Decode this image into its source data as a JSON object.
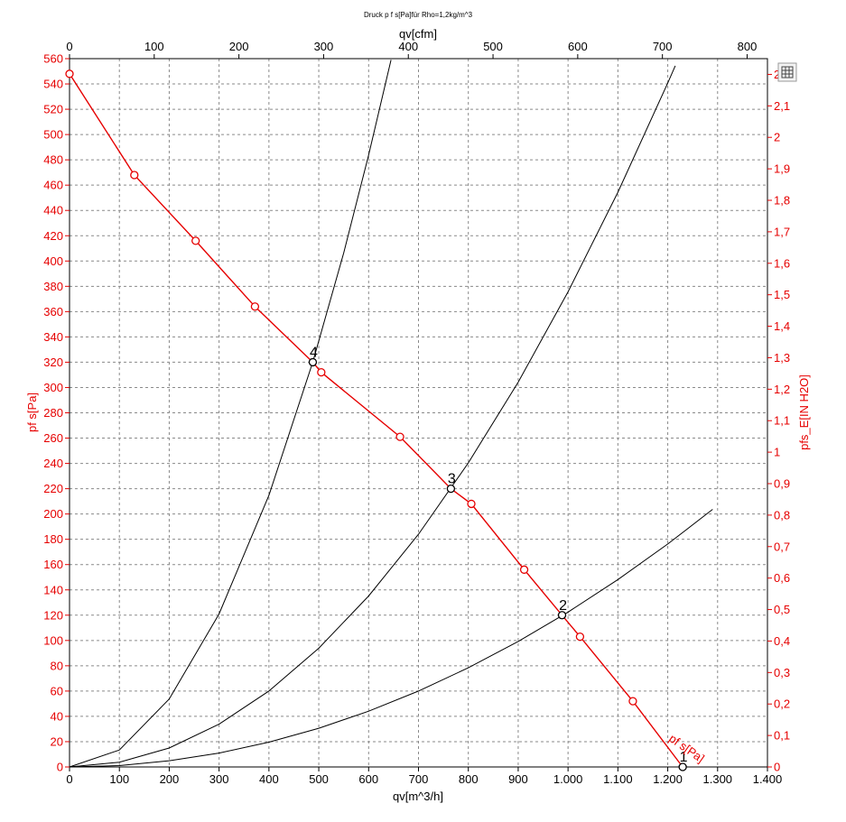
{
  "chart_data": {
    "type": "line",
    "title": "Druck p f s[Pa]für Rho=1,2kg/m^3",
    "xlabel": "qv[m^3/h]",
    "x2label": "qv[cfm]",
    "ylabel": "pf s[Pa]",
    "y2label": "pfs_E[IN H2O]",
    "xlim": [
      0,
      1400
    ],
    "ylim": [
      0,
      560
    ],
    "x2lim": [
      0,
      824
    ],
    "y2lim": [
      0,
      2.25
    ],
    "grid": true,
    "x_ticks": [
      {
        "value": 0,
        "label": "0"
      },
      {
        "value": 100,
        "label": "100"
      },
      {
        "value": 200,
        "label": "200"
      },
      {
        "value": 300,
        "label": "300"
      },
      {
        "value": 400,
        "label": "400"
      },
      {
        "value": 500,
        "label": "500"
      },
      {
        "value": 600,
        "label": "600"
      },
      {
        "value": 700,
        "label": "700"
      },
      {
        "value": 800,
        "label": "800"
      },
      {
        "value": 900,
        "label": "900"
      },
      {
        "value": 1000,
        "label": "1.000"
      },
      {
        "value": 1100,
        "label": "1.100"
      },
      {
        "value": 1200,
        "label": "1.200"
      },
      {
        "value": 1300,
        "label": "1.300"
      },
      {
        "value": 1400,
        "label": "1.400"
      }
    ],
    "x2_ticks": [
      {
        "value": 0,
        "label": "0"
      },
      {
        "value": 100,
        "label": "100"
      },
      {
        "value": 200,
        "label": "200"
      },
      {
        "value": 300,
        "label": "300"
      },
      {
        "value": 400,
        "label": "400"
      },
      {
        "value": 500,
        "label": "500"
      },
      {
        "value": 600,
        "label": "600"
      },
      {
        "value": 700,
        "label": "700"
      },
      {
        "value": 800,
        "label": "800"
      }
    ],
    "y_ticks": [
      {
        "value": 0,
        "label": "0"
      },
      {
        "value": 20,
        "label": "20"
      },
      {
        "value": 40,
        "label": "40"
      },
      {
        "value": 60,
        "label": "60"
      },
      {
        "value": 80,
        "label": "80"
      },
      {
        "value": 100,
        "label": "100"
      },
      {
        "value": 120,
        "label": "120"
      },
      {
        "value": 140,
        "label": "140"
      },
      {
        "value": 160,
        "label": "160"
      },
      {
        "value": 180,
        "label": "180"
      },
      {
        "value": 200,
        "label": "200"
      },
      {
        "value": 220,
        "label": "220"
      },
      {
        "value": 240,
        "label": "240"
      },
      {
        "value": 260,
        "label": "260"
      },
      {
        "value": 280,
        "label": "280"
      },
      {
        "value": 300,
        "label": "300"
      },
      {
        "value": 320,
        "label": "320"
      },
      {
        "value": 340,
        "label": "340"
      },
      {
        "value": 360,
        "label": "360"
      },
      {
        "value": 380,
        "label": "380"
      },
      {
        "value": 400,
        "label": "400"
      },
      {
        "value": 420,
        "label": "420"
      },
      {
        "value": 440,
        "label": "440"
      },
      {
        "value": 460,
        "label": "460"
      },
      {
        "value": 480,
        "label": "480"
      },
      {
        "value": 500,
        "label": "500"
      },
      {
        "value": 520,
        "label": "520"
      },
      {
        "value": 540,
        "label": "540"
      },
      {
        "value": 560,
        "label": "560"
      }
    ],
    "y2_ticks": [
      {
        "value": 0,
        "label": "0"
      },
      {
        "value": 0.1,
        "label": "0,1"
      },
      {
        "value": 0.2,
        "label": "0,2"
      },
      {
        "value": 0.3,
        "label": "0,3"
      },
      {
        "value": 0.4,
        "label": "0,4"
      },
      {
        "value": 0.5,
        "label": "0,5"
      },
      {
        "value": 0.6,
        "label": "0,6"
      },
      {
        "value": 0.7,
        "label": "0,7"
      },
      {
        "value": 0.8,
        "label": "0,8"
      },
      {
        "value": 0.9,
        "label": "0,9"
      },
      {
        "value": 1.0,
        "label": "1"
      },
      {
        "value": 1.1,
        "label": "1,1"
      },
      {
        "value": 1.2,
        "label": "1,2"
      },
      {
        "value": 1.3,
        "label": "1,3"
      },
      {
        "value": 1.4,
        "label": "1,4"
      },
      {
        "value": 1.5,
        "label": "1,5"
      },
      {
        "value": 1.6,
        "label": "1,6"
      },
      {
        "value": 1.7,
        "label": "1,7"
      },
      {
        "value": 1.8,
        "label": "1,8"
      },
      {
        "value": 1.9,
        "label": "1,9"
      },
      {
        "value": 2.0,
        "label": "2"
      },
      {
        "value": 2.1,
        "label": "2,1"
      },
      {
        "value": 2.2,
        "label": "2,2"
      }
    ],
    "fan_curve": {
      "name": "pf s[Pa]",
      "color": "#e60000",
      "x": [
        0,
        130,
        253,
        372,
        488,
        505,
        663,
        765,
        806,
        912,
        988,
        1024,
        1130,
        1230
      ],
      "y": [
        548,
        468,
        416,
        364,
        320,
        312,
        261,
        220,
        208,
        156,
        120,
        103,
        52,
        0
      ],
      "markers_x": [
        0,
        130,
        253,
        372,
        505,
        663,
        806,
        912,
        1024,
        1130
      ],
      "markers_y": [
        548,
        468,
        416,
        364,
        312,
        261,
        208,
        156,
        103,
        52
      ]
    },
    "system_curves": [
      {
        "color": "#000000",
        "x": [
          0,
          100,
          200,
          300,
          400,
          500,
          600,
          700,
          800,
          900,
          1000,
          1100,
          1200,
          1290
        ],
        "y": [
          0,
          1.1,
          4.9,
          11.0,
          19.6,
          30.6,
          44.1,
          60.0,
          78.4,
          99.2,
          122.4,
          148.2,
          176.3,
          203.7
        ]
      },
      {
        "color": "#000000",
        "x": [
          0,
          100,
          200,
          300,
          400,
          500,
          600,
          700,
          800,
          900,
          1000,
          1100,
          1200,
          1215
        ],
        "y": [
          0,
          3.8,
          15.0,
          33.8,
          60.1,
          93.9,
          135.2,
          184.0,
          240.4,
          304.2,
          375.6,
          454.4,
          540.8,
          554.4
        ]
      },
      {
        "color": "#000000",
        "x": [
          0,
          100,
          200,
          300,
          400,
          488,
          550,
          600,
          645
        ],
        "y": [
          0,
          13.4,
          53.7,
          120.9,
          214.9,
          320.0,
          406.5,
          483.8,
          559.0
        ]
      }
    ],
    "operating_points": [
      {
        "label": "1",
        "x": 1230,
        "y": 0
      },
      {
        "label": "2",
        "x": 988,
        "y": 120
      },
      {
        "label": "3",
        "x": 765,
        "y": 220
      },
      {
        "label": "4",
        "x": 488,
        "y": 320
      }
    ],
    "curve_annotation": "pf s[Pa]"
  }
}
